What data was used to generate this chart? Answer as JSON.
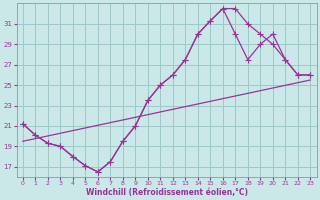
{
  "background_color": "#cbe8e8",
  "grid_color": "#a0c8c8",
  "line_color": "#993399",
  "xlabel": "Windchill (Refroidissement éolien,°C)",
  "xlim": [
    -0.5,
    23.5
  ],
  "ylim": [
    16,
    33
  ],
  "yticks": [
    17,
    19,
    21,
    23,
    25,
    27,
    29,
    31
  ],
  "xticks": [
    0,
    1,
    2,
    3,
    4,
    5,
    6,
    7,
    8,
    9,
    10,
    11,
    12,
    13,
    14,
    15,
    16,
    17,
    18,
    19,
    20,
    21,
    22,
    23
  ],
  "line1_x": [
    0,
    1,
    2,
    3,
    4,
    5,
    6,
    7,
    8,
    9,
    10,
    11,
    12,
    13,
    14,
    15,
    16,
    17,
    18,
    19,
    20,
    21,
    22,
    23
  ],
  "line1_y": [
    21.2,
    20.1,
    19.3,
    19.0,
    18.0,
    17.1,
    16.5,
    17.5,
    19.5,
    21.0,
    23.5,
    25.0,
    26.0,
    27.5,
    30.0,
    31.3,
    32.5,
    32.5,
    31.0,
    30.0,
    29.0,
    27.5,
    26.0,
    26.0
  ],
  "line2_x": [
    0,
    1,
    2,
    3,
    4,
    5,
    6,
    7,
    8,
    9,
    10,
    11,
    12,
    13,
    14,
    15,
    16,
    17,
    18,
    19,
    20,
    21,
    22,
    23
  ],
  "line2_y": [
    21.2,
    20.1,
    19.3,
    19.0,
    18.0,
    17.1,
    16.5,
    17.5,
    19.5,
    21.0,
    23.5,
    25.0,
    26.0,
    27.5,
    30.0,
    31.3,
    32.5,
    30.0,
    27.5,
    29.0,
    30.0,
    27.5,
    26.0,
    26.0
  ],
  "line3_x": [
    0,
    23
  ],
  "line3_y": [
    19.5,
    25.5
  ]
}
